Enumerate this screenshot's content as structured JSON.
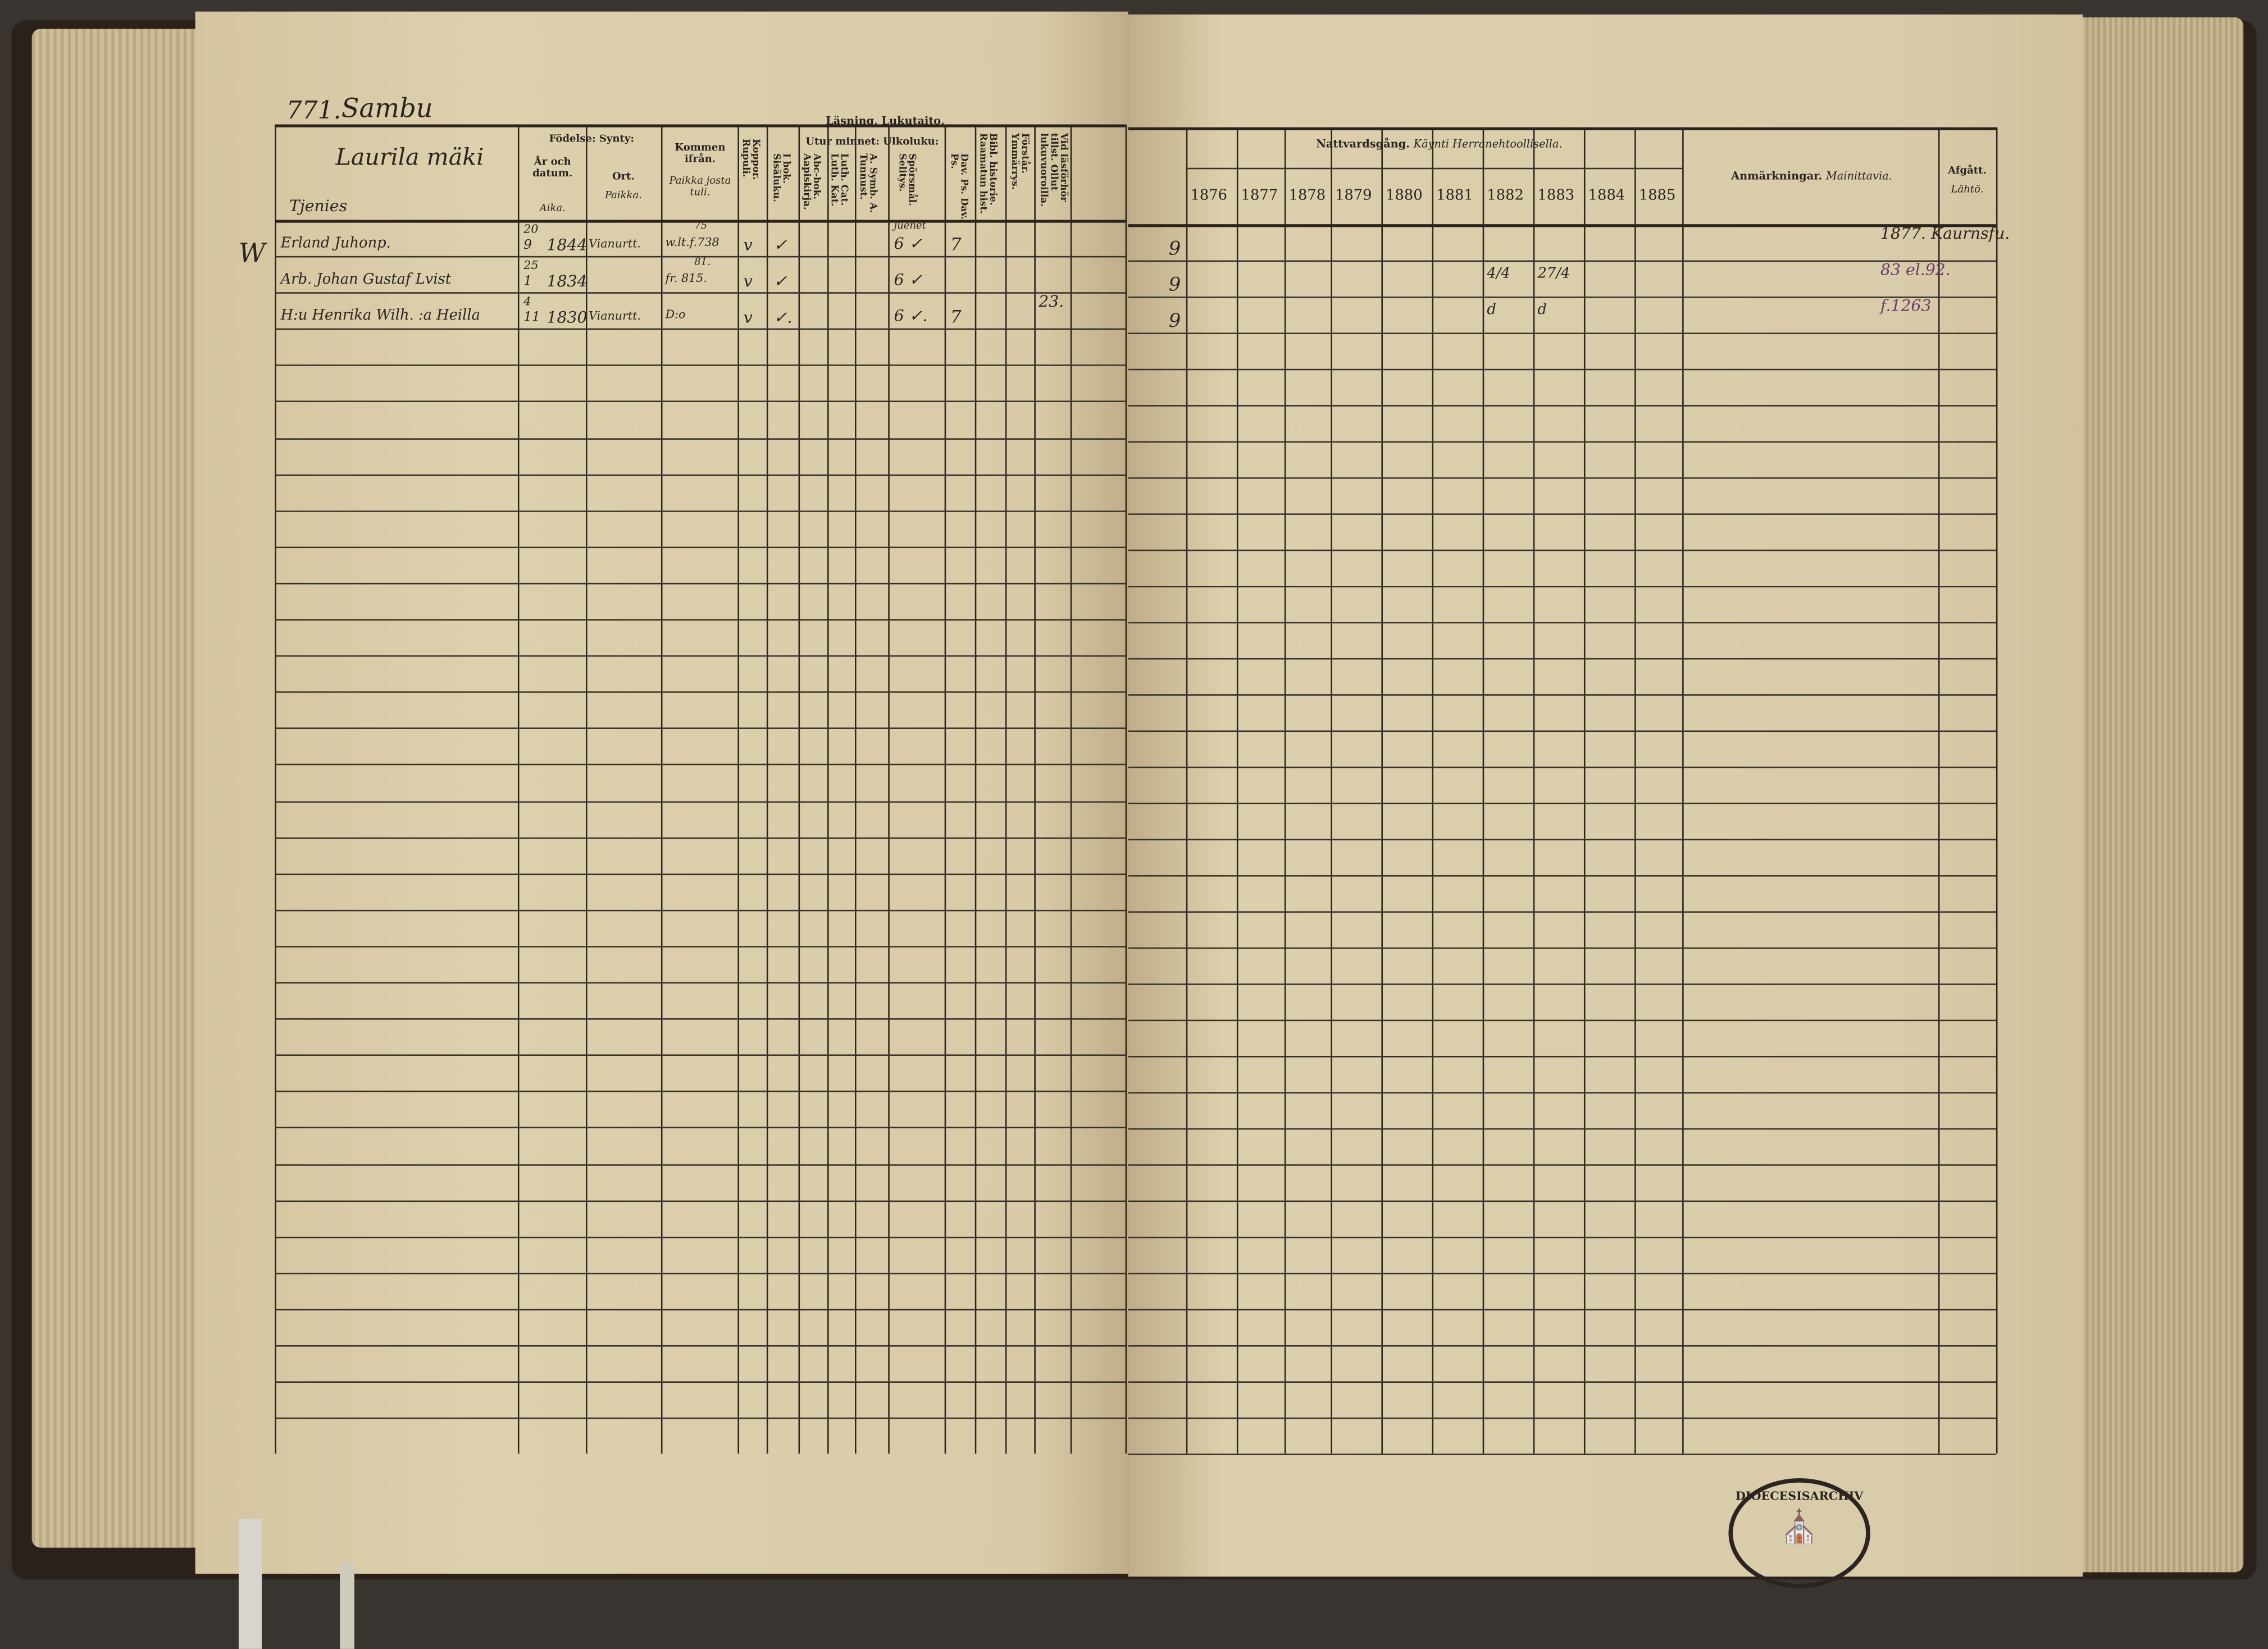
{
  "page_heading": {
    "number": "771.",
    "place": "Sambu"
  },
  "left_header": {
    "farm": "Laurila mäki",
    "name_col": "Tjenies",
    "fodelse": "Födelse: Synty:",
    "ar_datum": "År och datum.",
    "aika": "Aika.",
    "ort": "Ort.",
    "paikka": "Paikka.",
    "kommen": "Kommen ifrån.",
    "kommen_fi": "Paikka josta tuli.",
    "koppor": "Koppor. Rupuli.",
    "lasning": "Läsning, Lukutaito,",
    "i_bok": "I bok. Sisäluku.",
    "utur": "Utur minnet: Ulkoluku:",
    "abc": "Abc-bok. Aapiskirja.",
    "luth": "Luth. Cat. Luth. Kat.",
    "symb": "A. Symb. A. Tunnust.",
    "sporsmal": "Spörsmål. Selitys.",
    "dav": "Dav. Ps. Dav. Ps.",
    "bibl": "Bibl. historie. Raamatun hist.",
    "forstar": "Förstår. Ymmärrys.",
    "vid": "Vid läsförhör tillst. Ollut lukuvuoroilla."
  },
  "entries": [
    {
      "mark": "W",
      "name": "Erland Juhonp.",
      "day": "20",
      "month": "9",
      "year": "1844",
      "place": "Vianurtt.",
      "kommen_top": "75",
      "kommen": "w.lt.f.738",
      "koppor": "v",
      "ibok": "✓",
      "sporsmal_top": "juenet",
      "sporsmal": "6 ✓",
      "dav": "7",
      "vid": "",
      "right_mark": "9",
      "y1882": "",
      "y1883": "",
      "afgatt": "1877. Kaurnsfu."
    },
    {
      "mark": "",
      "name": "Arb. Johan Gustaf Lvist",
      "day": "25",
      "month": "1",
      "year": "1834",
      "place": "",
      "kommen_top": "81.",
      "kommen": "fr. 815.",
      "koppor": "v",
      "ibok": "✓",
      "sporsmal_top": "",
      "sporsmal": "6 ✓",
      "dav": "",
      "vid": "",
      "right_mark": "9",
      "y1882": "4/4",
      "y1883": "27/4",
      "afgatt": "83 el.92."
    },
    {
      "mark": "",
      "name": "H:u Henrika Wilh. :a Heilla",
      "day": "4",
      "month": "11",
      "year": "1830",
      "place": "Vianurtt.",
      "kommen_top": "",
      "kommen": "D:o",
      "koppor": "v",
      "ibok": "✓.",
      "sporsmal_top": "",
      "sporsmal": "6 ✓.",
      "dav": "7",
      "vid": "23.",
      "right_mark": "9",
      "y1882": "d",
      "y1883": "d",
      "afgatt": "f.1263"
    }
  ],
  "right_header": {
    "nattvard": "Nattvardsgång.",
    "nattvard_fi": "Käynti Herranehtoollisella.",
    "years": [
      "1876",
      "1877",
      "1878",
      "1879",
      "1880",
      "1881",
      "1882",
      "1883",
      "1884",
      "1885"
    ],
    "anmarkningar": "Anmärkningar.",
    "anmarkningar_fi": "Mainittavia.",
    "afgatt": "Afgått.",
    "afgatt_fi": "Lähtö."
  },
  "stamp": {
    "text": "DIOECESISARCHIV"
  },
  "colors": {
    "paper": "#d9cba8",
    "ink": "#2a2420",
    "purple_ink": "#6a3c6a",
    "cover": "#2b211b"
  }
}
